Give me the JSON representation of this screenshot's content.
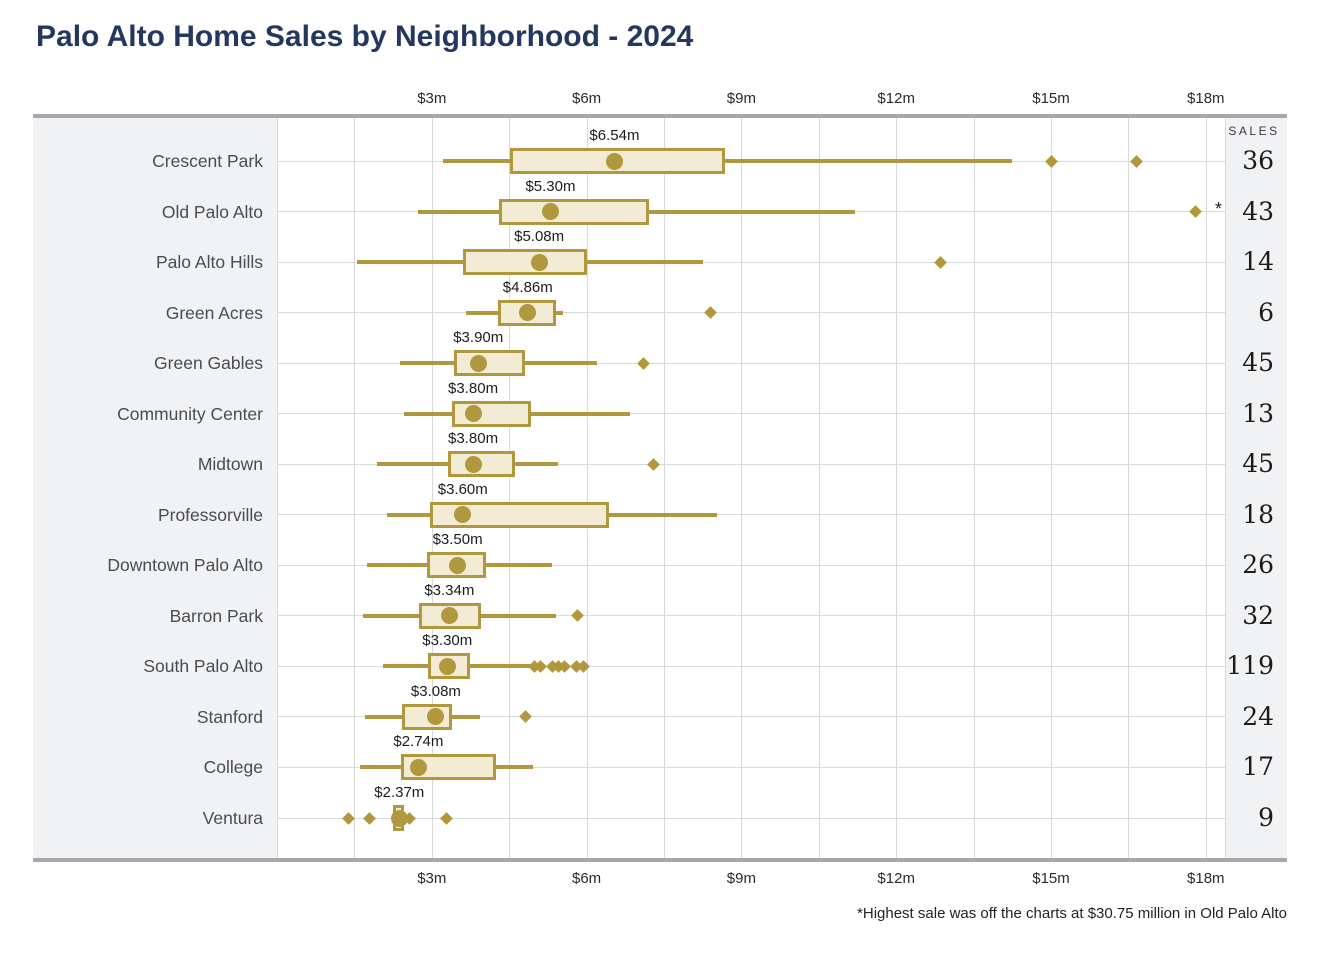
{
  "title": "Palo Alto Home Sales by Neighborhood - 2024",
  "sales_header": "SALES",
  "footnote": "*Highest sale was off the charts at $30.75 million in Old Palo Alto",
  "colors": {
    "gold": "#b1973e",
    "cream": "#f1ecd3",
    "band": "#f1f2f4",
    "grid": "#d8d9db",
    "frame": "#a5a7aa",
    "title": "#243760",
    "label": "#4b4c4e",
    "text": "#1f1f1f"
  },
  "chart_data": {
    "type": "boxplot",
    "orientation": "horizontal",
    "unit": "millions USD",
    "x_range": [
      0,
      18.37
    ],
    "x_minor_step": 1.5,
    "grid": true,
    "x_ticks": [
      {
        "value": 3,
        "label": "$3m"
      },
      {
        "value": 6,
        "label": "$6m"
      },
      {
        "value": 9,
        "label": "$9m"
      },
      {
        "value": 12,
        "label": "$12m"
      },
      {
        "value": 15,
        "label": "$15m"
      },
      {
        "value": 18,
        "label": "$18m"
      }
    ],
    "rows": [
      {
        "neighborhood": "Crescent Park",
        "median_label": "$6.54m",
        "median": 6.54,
        "q1": 4.52,
        "q3": 8.68,
        "whisker_low": 3.22,
        "whisker_high": 14.25,
        "outliers": [
          15.0,
          16.65
        ],
        "sales": 36
      },
      {
        "neighborhood": "Old Palo Alto",
        "median_label": "$5.30m",
        "median": 5.3,
        "q1": 4.3,
        "q3": 7.2,
        "whisker_low": 2.73,
        "whisker_high": 11.2,
        "outliers": [
          17.8
        ],
        "annotation": "*",
        "sales": 43
      },
      {
        "neighborhood": "Palo Alto Hills",
        "median_label": "$5.08m",
        "median": 5.08,
        "q1": 3.6,
        "q3": 6.0,
        "whisker_low": 1.55,
        "whisker_high": 8.26,
        "outliers": [
          12.85
        ],
        "sales": 14
      },
      {
        "neighborhood": "Green Acres",
        "median_label": "$4.86m",
        "median": 4.86,
        "q1": 4.28,
        "q3": 5.4,
        "whisker_low": 3.67,
        "whisker_high": 5.55,
        "outliers": [
          8.4
        ],
        "sales": 6
      },
      {
        "neighborhood": "Green Gables",
        "median_label": "$3.90m",
        "median": 3.9,
        "q1": 3.43,
        "q3": 4.81,
        "whisker_low": 2.38,
        "whisker_high": 6.2,
        "outliers": [
          7.1
        ],
        "sales": 45
      },
      {
        "neighborhood": "Community Center",
        "median_label": "$3.80m",
        "median": 3.8,
        "q1": 3.4,
        "q3": 4.93,
        "whisker_low": 2.46,
        "whisker_high": 6.84,
        "outliers": [],
        "sales": 13
      },
      {
        "neighborhood": "Midtown",
        "median_label": "$3.80m",
        "median": 3.8,
        "q1": 3.31,
        "q3": 4.61,
        "whisker_low": 1.93,
        "whisker_high": 5.44,
        "outliers": [
          7.3
        ],
        "sales": 45
      },
      {
        "neighborhood": "Professorville",
        "median_label": "$3.60m",
        "median": 3.6,
        "q1": 2.97,
        "q3": 6.43,
        "whisker_low": 2.14,
        "whisker_high": 8.52,
        "outliers": [],
        "sales": 18
      },
      {
        "neighborhood": "Downtown Palo Alto",
        "median_label": "$3.50m",
        "median": 3.5,
        "q1": 2.9,
        "q3": 4.05,
        "whisker_low": 1.75,
        "whisker_high": 5.32,
        "outliers": [],
        "sales": 26
      },
      {
        "neighborhood": "Barron Park",
        "median_label": "$3.34m",
        "median": 3.34,
        "q1": 2.75,
        "q3": 3.95,
        "whisker_low": 1.67,
        "whisker_high": 5.4,
        "outliers": [
          5.82
        ],
        "sales": 32
      },
      {
        "neighborhood": "South Palo Alto",
        "median_label": "$3.30m",
        "median": 3.3,
        "q1": 2.93,
        "q3": 3.75,
        "whisker_low": 2.05,
        "whisker_high": 4.9,
        "outliers": [
          4.99,
          5.1,
          5.33,
          5.45,
          5.58,
          5.81,
          5.94
        ],
        "sales": 119
      },
      {
        "neighborhood": "Stanford",
        "median_label": "$3.08m",
        "median": 3.08,
        "q1": 2.42,
        "q3": 3.4,
        "whisker_low": 1.7,
        "whisker_high": 3.93,
        "outliers": [
          4.81
        ],
        "sales": 24
      },
      {
        "neighborhood": "College",
        "median_label": "$2.74m",
        "median": 2.74,
        "q1": 2.4,
        "q3": 4.25,
        "whisker_low": 1.61,
        "whisker_high": 4.97,
        "outliers": [],
        "sales": 17
      },
      {
        "neighborhood": "Ventura",
        "median_label": "$2.37m",
        "median": 2.37,
        "q1": 2.24,
        "q3": 2.46,
        "whisker_low": 2.24,
        "whisker_high": 2.46,
        "outliers": [
          1.39,
          1.8,
          2.57,
          3.28
        ],
        "sales": 9
      }
    ]
  }
}
